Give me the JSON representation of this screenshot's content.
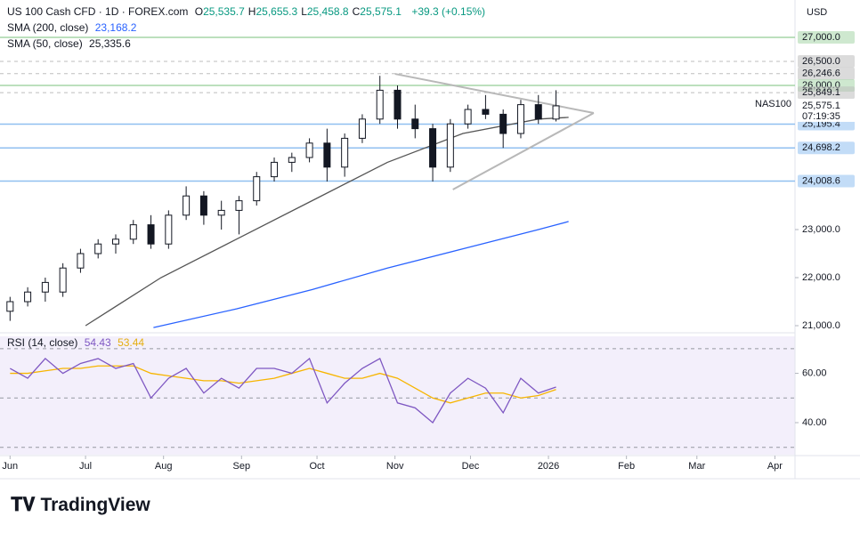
{
  "chart_data": {
    "type": "candlestick",
    "title": "US 100 Cash CFD · 1D · FOREX.com",
    "ohlc": [
      {
        "key": "O",
        "value": "25,535.7"
      },
      {
        "key": "H",
        "value": "25,655.3"
      },
      {
        "key": "L",
        "value": "25,458.8"
      },
      {
        "key": "C",
        "value": "25,575.1"
      }
    ],
    "change": "+39.3 (+0.15%)",
    "currency": "USD",
    "symbol": "NAS100",
    "countdown": "07:19:35",
    "brand": "TradingView",
    "x": [
      0,
      7,
      14,
      21,
      28,
      35,
      42,
      49,
      56,
      63,
      70,
      77,
      84,
      91,
      98,
      105,
      112,
      119,
      126,
      133,
      140,
      147,
      154,
      161,
      168,
      175,
      182,
      189,
      196,
      203,
      210,
      217
    ],
    "open": [
      21300,
      21500,
      21700,
      21700,
      22200,
      22500,
      22700,
      22800,
      23100,
      22700,
      23300,
      23700,
      23300,
      23400,
      23600,
      24100,
      24400,
      24500,
      24800,
      24300,
      24900,
      25300,
      25900,
      25300,
      25100,
      24300,
      25200,
      25500,
      25400,
      25000,
      25600,
      25300
    ],
    "high": [
      21600,
      21800,
      22000,
      22300,
      22600,
      22800,
      22900,
      23200,
      23300,
      23400,
      23900,
      23800,
      23600,
      23700,
      24200,
      24500,
      24600,
      24900,
      25100,
      25000,
      25400,
      26200,
      26000,
      25600,
      25200,
      25300,
      25600,
      25800,
      25500,
      25700,
      25800,
      25900
    ],
    "low": [
      21100,
      21400,
      21500,
      21600,
      22100,
      22400,
      22500,
      22700,
      22600,
      22600,
      23200,
      23100,
      23000,
      22900,
      23500,
      24000,
      24200,
      24400,
      24000,
      24100,
      24800,
      25200,
      25100,
      24900,
      24000,
      24200,
      25100,
      25300,
      24700,
      24900,
      25200,
      25250
    ],
    "close": [
      21500,
      21700,
      21900,
      22200,
      22500,
      22700,
      22800,
      23100,
      22700,
      23300,
      23700,
      23300,
      23400,
      23600,
      24100,
      24400,
      24500,
      24800,
      24300,
      24900,
      25300,
      25900,
      25300,
      25100,
      24300,
      25200,
      25500,
      25400,
      25000,
      25600,
      25300,
      25575.1
    ],
    "xlim": [
      -4,
      312
    ],
    "xticks": [
      {
        "value": 0,
        "label": "Jun"
      },
      {
        "value": 30,
        "label": "Jul"
      },
      {
        "value": 61,
        "label": "Aug"
      },
      {
        "value": 92,
        "label": "Sep"
      },
      {
        "value": 122,
        "label": "Oct"
      },
      {
        "value": 153,
        "label": "Nov"
      },
      {
        "value": 183,
        "label": "Dec"
      },
      {
        "value": 214,
        "label": "2026"
      },
      {
        "value": 245,
        "label": "Feb"
      },
      {
        "value": 273,
        "label": "Mar"
      },
      {
        "value": 304,
        "label": "Apr"
      }
    ],
    "ylim": [
      20852,
      27778
    ],
    "yticks": [
      {
        "value": 21000,
        "label": "21,000.0"
      },
      {
        "value": 22000,
        "label": "22,000.0"
      },
      {
        "value": 23000,
        "label": "23,000.0"
      }
    ],
    "levels": [
      {
        "value": 27000,
        "label": "27,000.0",
        "color": "#a5d6a7",
        "dashed": false
      },
      {
        "value": 26500,
        "label": "26,500.0",
        "color": "#bdbdbd",
        "dashed": true
      },
      {
        "value": 26246.6,
        "label": "26,246.6",
        "color": "#bdbdbd",
        "dashed": true
      },
      {
        "value": 26000,
        "label": "26,000.0",
        "color": "#a5d6a7",
        "dashed": false
      },
      {
        "value": 25849.1,
        "label": "25,849.1",
        "color": "#bdbdbd",
        "dashed": true
      },
      {
        "value": 25195.4,
        "label": "25,195.4",
        "color": "#90bff0",
        "dashed": false
      },
      {
        "value": 24698.2,
        "label": "24,698.2",
        "color": "#90bff0",
        "dashed": false
      },
      {
        "value": 24008.6,
        "label": "24,008.6",
        "color": "#90bff0",
        "dashed": false
      }
    ],
    "last_price": {
      "value": 25575.1,
      "label": "25,575.1"
    },
    "series": [
      {
        "name": "SMA (50, close)",
        "last": "25,335.6",
        "color": "#555555",
        "x": [
          30,
          60,
          90,
          120,
          150,
          180,
          210,
          222
        ],
        "values": [
          21000,
          22000,
          22800,
          23600,
          24400,
          25000,
          25300,
          25335.6
        ]
      },
      {
        "name": "SMA (200, close)",
        "last": "23,168.2",
        "color": "#2962ff",
        "x": [
          57,
          90,
          120,
          150,
          180,
          210,
          222
        ],
        "values": [
          20960,
          21350,
          21750,
          22200,
          22600,
          23000,
          23168.2
        ]
      }
    ],
    "trendlines": [
      {
        "x": [
          153,
          232
        ],
        "values": [
          26240,
          25426
        ]
      },
      {
        "x": [
          176,
          232
        ],
        "values": [
          23833,
          25426
        ]
      }
    ],
    "rsi": {
      "name": "RSI (14, close)",
      "last": "54.43",
      "ma_last": "53.44",
      "ylim": [
        27,
        75
      ],
      "yticks": [
        {
          "value": 40,
          "label": "40.00"
        },
        {
          "value": 60,
          "label": "60.00"
        }
      ],
      "bands": [
        70,
        50,
        30
      ],
      "values": [
        62,
        58,
        66,
        60,
        64,
        66,
        62,
        64,
        50,
        58,
        62,
        52,
        58,
        54,
        62,
        62,
        60,
        66,
        48,
        56,
        62,
        66,
        48,
        46,
        40,
        52,
        58,
        54,
        44,
        58,
        52,
        54.43
      ],
      "ma": [
        60,
        60,
        61,
        62,
        62,
        63,
        63,
        63,
        60,
        59,
        58,
        57,
        57,
        56,
        57,
        58,
        60,
        62,
        60,
        58,
        58,
        60,
        58,
        54,
        50,
        48,
        50,
        52,
        52,
        50,
        51,
        53.44
      ]
    }
  }
}
